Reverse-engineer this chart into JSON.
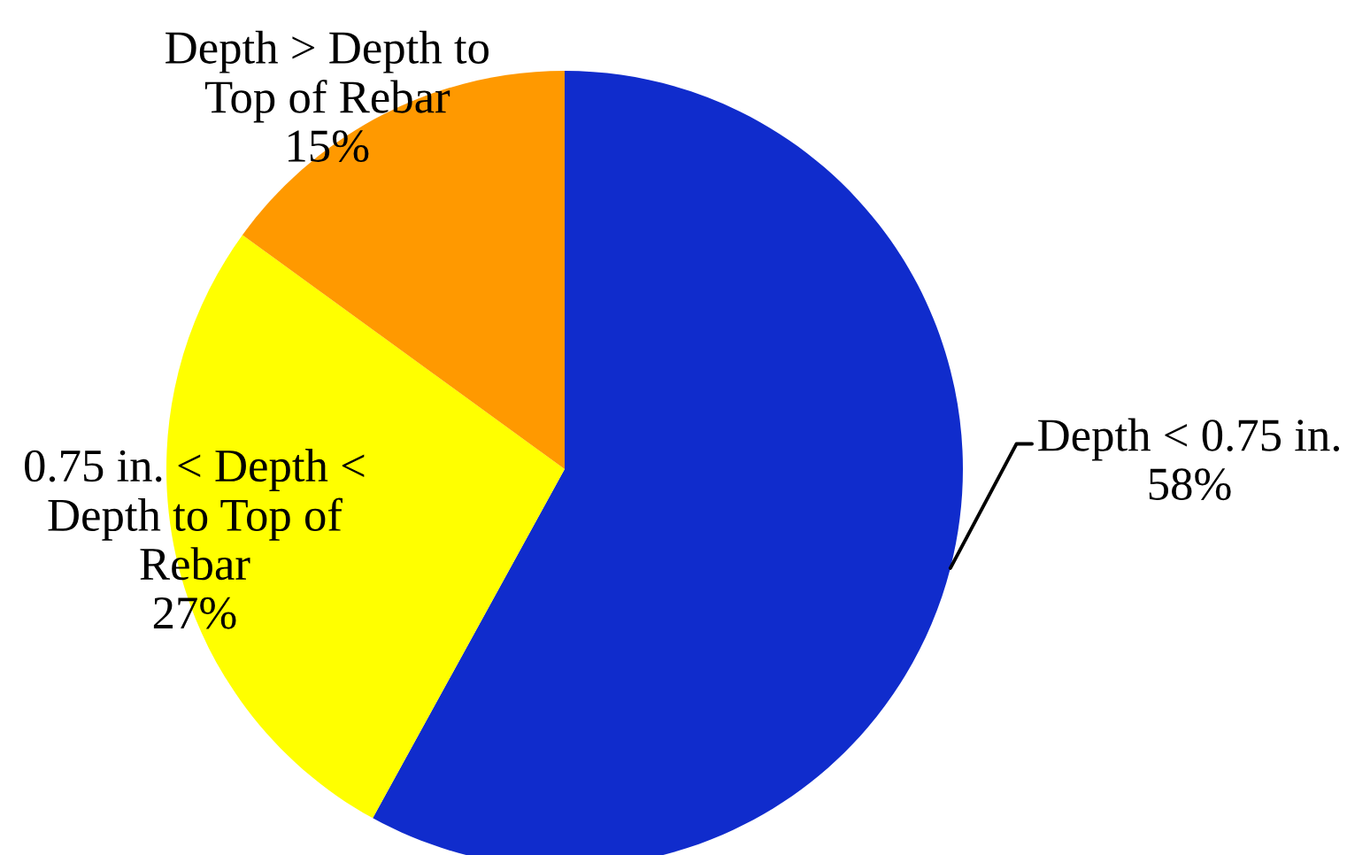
{
  "chart_data": {
    "type": "pie",
    "categories": [
      "Depth < 0.75 in.",
      "0.75 in. < Depth <\nDepth to Top of\nRebar",
      "Depth > Depth to\nTop of Rebar"
    ],
    "values": [
      58,
      27,
      15
    ],
    "colors": [
      "#102ccc",
      "#ffff00",
      "#ff9900"
    ],
    "value_labels": [
      "58%",
      "27%",
      "15%"
    ]
  }
}
